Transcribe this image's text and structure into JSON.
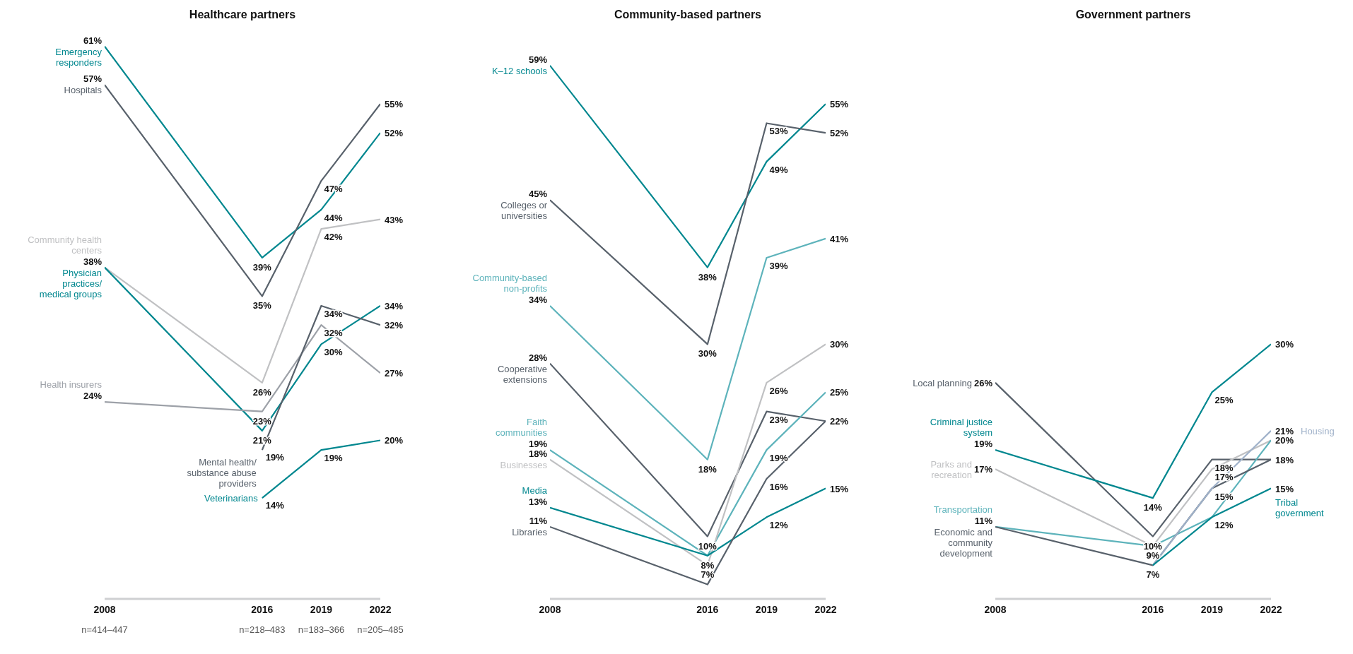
{
  "chart_data": [
    {
      "type": "line",
      "title": "Healthcare partners",
      "x": [
        2008,
        2016,
        2019,
        2022
      ],
      "xlim": [
        2008,
        2022
      ],
      "xticks": [
        2008,
        2016,
        2019,
        2022
      ],
      "tick_labels": "x",
      "annotations": [
        "n=414–447",
        "n=218–483",
        "n=183–366",
        "n=205–485"
      ],
      "series": [
        {
          "name": "Emergency responders",
          "color": "#00878f",
          "values": [
            61,
            39,
            44,
            52
          ],
          "value_labels": [
            "61%",
            "39%",
            "44%",
            "52%"
          ]
        },
        {
          "name": "Hospitals",
          "color": "#58616b",
          "values": [
            57,
            35,
            47,
            55
          ],
          "value_labels": [
            "57%",
            "35%",
            "47%",
            "55%"
          ]
        },
        {
          "name": "Community health centers",
          "color": "#c0c1c3",
          "values": [
            38,
            26,
            42,
            43
          ],
          "value_labels": [
            "38%",
            "26%",
            "42%",
            "43%"
          ]
        },
        {
          "name": "Physician practices/medical groups",
          "color": "#00878f",
          "values": [
            38,
            21,
            30,
            34
          ],
          "value_labels": [
            null,
            "21%",
            "30%",
            "34%"
          ]
        },
        {
          "name": "Health insurers",
          "color": "#9da1a8",
          "values": [
            24,
            23,
            32,
            27
          ],
          "value_labels": [
            "24%",
            "23%",
            "32%",
            "27%"
          ]
        },
        {
          "name": "Mental health/substance abuse providers",
          "color": "#58616b",
          "values": [
            null,
            19,
            34,
            32
          ],
          "value_labels": [
            null,
            "19%",
            "34%",
            "32%"
          ]
        },
        {
          "name": "Veterinarians",
          "color": "#00878f",
          "values": [
            null,
            14,
            19,
            20
          ],
          "value_labels": [
            null,
            "14%",
            "19%",
            "20%"
          ]
        }
      ]
    },
    {
      "type": "line",
      "title": "Community-based partners",
      "x": [
        2008,
        2016,
        2019,
        2022
      ],
      "xlim": [
        2008,
        2022
      ],
      "xticks": [
        2008,
        2016,
        2019,
        2022
      ],
      "tick_labels": "x",
      "series": [
        {
          "name": "K–12 schools",
          "color": "#00878f",
          "values": [
            59,
            38,
            49,
            55
          ],
          "value_labels": [
            "59%",
            "38%",
            "49%",
            "55%"
          ]
        },
        {
          "name": "Colleges or universities",
          "color": "#58616b",
          "values": [
            45,
            30,
            53,
            52
          ],
          "value_labels": [
            "45%",
            "30%",
            "53%",
            "52%"
          ]
        },
        {
          "name": "Community-based non-profits",
          "color": "#5db3bb",
          "values": [
            34,
            18,
            39,
            41
          ],
          "value_labels": [
            "34%",
            "18%",
            "39%",
            "41%"
          ]
        },
        {
          "name": "Cooperative extensions",
          "color": "#58616b",
          "values": [
            28,
            10,
            23,
            22
          ],
          "value_labels": [
            "28%",
            "10%",
            "23%",
            "22%"
          ]
        },
        {
          "name": "Faith communities",
          "color": "#5db3bb",
          "values": [
            19,
            8,
            19,
            25
          ],
          "value_labels": [
            "19%",
            "8%",
            "19%",
            "25%"
          ]
        },
        {
          "name": "Businesses",
          "color": "#c0c1c3",
          "values": [
            18,
            7,
            26,
            30
          ],
          "value_labels": [
            "18%",
            "7%",
            "26%",
            "30%"
          ]
        },
        {
          "name": "Media",
          "color": "#00878f",
          "values": [
            13,
            8,
            12,
            15
          ],
          "value_labels": [
            "13%",
            null,
            "12%",
            "15%"
          ]
        },
        {
          "name": "Libraries",
          "color": "#58616b",
          "values": [
            11,
            5,
            16,
            22
          ],
          "value_labels": [
            "11%",
            null,
            "16%",
            null
          ]
        }
      ]
    },
    {
      "type": "line",
      "title": "Government partners",
      "x": [
        2008,
        2016,
        2019,
        2022
      ],
      "xlim": [
        2008,
        2022
      ],
      "xticks": [
        2008,
        2016,
        2019,
        2022
      ],
      "tick_labels": "x",
      "series": [
        {
          "name": "Local planning",
          "color": "#58616b",
          "values": [
            26,
            10,
            18,
            18
          ],
          "value_labels": [
            "26%",
            "10%",
            "18%",
            "18%"
          ]
        },
        {
          "name": "Criminal justice system",
          "color": "#00878f",
          "values": [
            19,
            14,
            25,
            30
          ],
          "value_labels": [
            "19%",
            "14%",
            "25%",
            "30%"
          ]
        },
        {
          "name": "Parks and recreation",
          "color": "#c0c1c3",
          "values": [
            17,
            9,
            17,
            20
          ],
          "value_labels": [
            "17%",
            "9%",
            "17%",
            "20%"
          ]
        },
        {
          "name": "Transportation",
          "color": "#5db3bb",
          "values": [
            11,
            9,
            12,
            20
          ],
          "value_labels": [
            "11%",
            null,
            null,
            null
          ]
        },
        {
          "name": "Economic and community development",
          "color": "#58616b",
          "values": [
            11,
            7,
            15,
            18
          ],
          "value_labels": [
            null,
            "7%",
            "15%",
            null
          ]
        },
        {
          "name": "Housing",
          "color": "#9fb1c9",
          "values": [
            null,
            7,
            15,
            21
          ],
          "value_labels": [
            null,
            null,
            null,
            "21%"
          ]
        },
        {
          "name": "Tribal government",
          "color": "#00878f",
          "values": [
            null,
            7,
            12,
            15
          ],
          "value_labels": [
            null,
            null,
            "12%",
            "15%"
          ]
        }
      ]
    }
  ]
}
